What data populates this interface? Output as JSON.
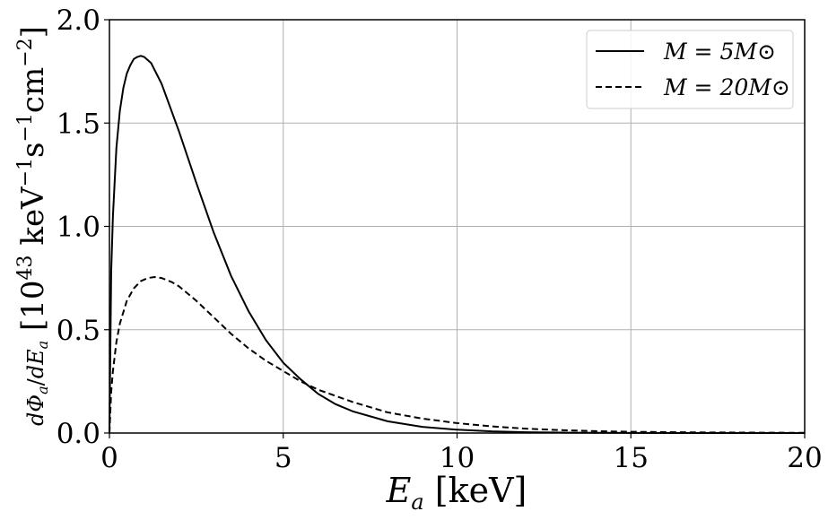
{
  "chart_data": {
    "type": "line",
    "xlabel": "E_a [keV]",
    "ylabel": "dΦ_a/dE_a [10^43 keV^-1 s^-1 cm^-2]",
    "xlim": [
      0,
      20
    ],
    "ylim": [
      0,
      2.0
    ],
    "xticks": [
      "0",
      "5",
      "10",
      "15",
      "20"
    ],
    "yticks": [
      "0.0",
      "0.5",
      "1.0",
      "1.5",
      "2.0"
    ],
    "grid": true,
    "legend_position": "top-right",
    "series": [
      {
        "name": "M = 5M⊙",
        "style": "solid",
        "color": "#000000",
        "x": [
          0,
          0.05,
          0.1,
          0.2,
          0.3,
          0.4,
          0.5,
          0.6,
          0.7,
          0.8,
          0.9,
          1.0,
          1.2,
          1.5,
          2.0,
          2.5,
          3.0,
          3.5,
          4.0,
          4.5,
          5.0,
          5.5,
          6.0,
          6.5,
          7.0,
          8.0,
          9.0,
          10.0,
          11.0,
          12.0,
          13.0,
          15.0,
          17.0,
          20.0
        ],
        "y": [
          0,
          0.78,
          1.05,
          1.38,
          1.56,
          1.67,
          1.74,
          1.78,
          1.81,
          1.82,
          1.825,
          1.82,
          1.79,
          1.69,
          1.46,
          1.21,
          0.97,
          0.76,
          0.59,
          0.45,
          0.34,
          0.26,
          0.19,
          0.14,
          0.105,
          0.057,
          0.03,
          0.016,
          0.008,
          0.004,
          0.002,
          0.0005,
          0.0001,
          0
        ]
      },
      {
        "name": "M = 20M⊙",
        "style": "dashed",
        "color": "#000000",
        "x": [
          0,
          0.05,
          0.1,
          0.2,
          0.3,
          0.5,
          0.7,
          0.9,
          1.1,
          1.3,
          1.5,
          1.8,
          2.0,
          2.5,
          3.0,
          3.5,
          4.0,
          4.5,
          5.0,
          5.5,
          6.0,
          6.5,
          7.0,
          8.0,
          9.0,
          10.0,
          11.0,
          12.0,
          13.0,
          14.0,
          15.0,
          17.0,
          20.0
        ],
        "y": [
          0,
          0.2,
          0.3,
          0.44,
          0.53,
          0.64,
          0.7,
          0.735,
          0.75,
          0.755,
          0.75,
          0.73,
          0.71,
          0.64,
          0.56,
          0.48,
          0.41,
          0.35,
          0.3,
          0.25,
          0.21,
          0.18,
          0.15,
          0.1,
          0.07,
          0.048,
          0.032,
          0.021,
          0.014,
          0.009,
          0.006,
          0.003,
          0.001
        ]
      }
    ]
  }
}
